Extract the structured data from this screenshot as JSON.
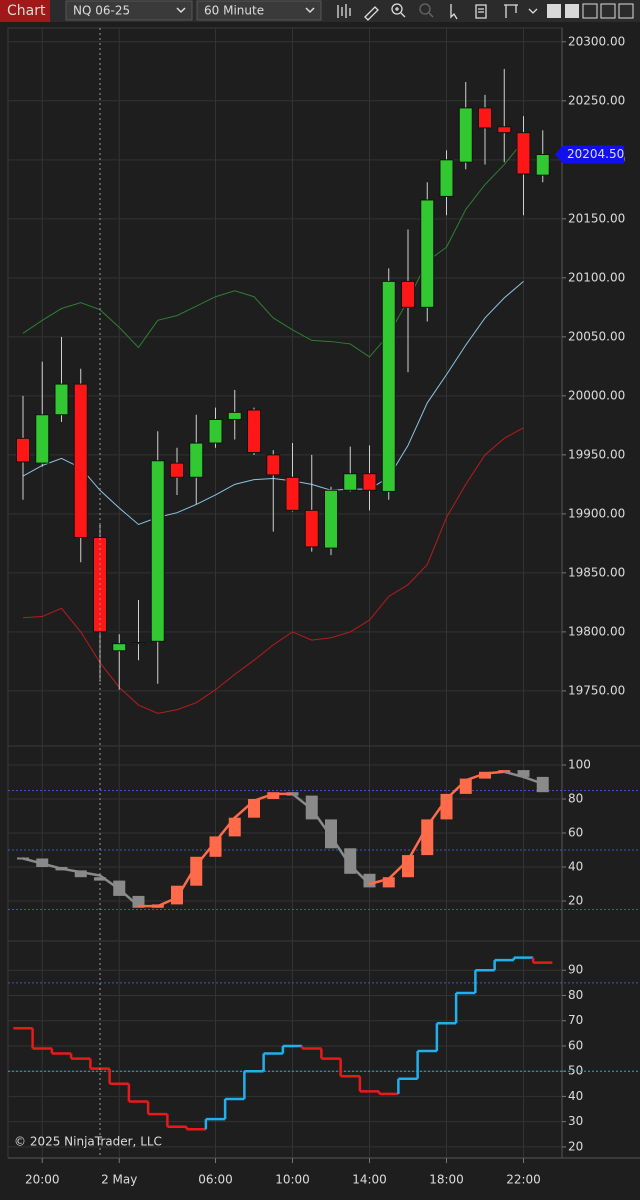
{
  "toolbar": {
    "tab": "Chart",
    "instrument": "NQ 06-25",
    "interval": "60 Minute"
  },
  "copyright": "© 2025 NinjaTrader, LLC",
  "chart_data": [
    {
      "type": "candlestick",
      "categories": [
        null,
        "20:00",
        null,
        null,
        null,
        "2 May",
        null,
        null,
        null,
        null,
        "06:00",
        null,
        null,
        null,
        "10:00",
        null,
        null,
        null,
        "14:00",
        null,
        null,
        null,
        "18:00",
        null,
        null,
        null,
        "22:00",
        null
      ],
      "open": [
        19964,
        19943,
        19984,
        20010,
        19880,
        19784,
        19790,
        19792,
        19943,
        19931,
        19960,
        19980,
        19988,
        19950,
        19931,
        19903,
        19871,
        19920,
        19934,
        19919,
        20097,
        20075,
        20169,
        20198,
        20244,
        20228,
        20223,
        20187
      ],
      "high": [
        20000,
        20029,
        20050,
        20023,
        19891,
        19798,
        19827,
        19970,
        19956,
        19984,
        19990,
        20005,
        19990,
        19954,
        19960,
        19950,
        19923,
        19957,
        19958,
        20108,
        20141,
        20181,
        20208,
        20266,
        20255,
        20277,
        20237,
        20225
      ],
      "low": [
        19912,
        19940,
        19978,
        19859,
        19758,
        19751,
        19776,
        19756,
        19916,
        19908,
        19956,
        19963,
        19950,
        19885,
        19902,
        19868,
        19865,
        19919,
        19903,
        19912,
        20020,
        20063,
        20153,
        20192,
        20196,
        20198,
        20153,
        20181
      ],
      "close": [
        19944,
        19984,
        20010,
        19880,
        19800,
        19790,
        19791,
        19945,
        19931,
        19960,
        19980,
        19986,
        19952,
        19933,
        19903,
        19872,
        19920,
        19934,
        19920,
        20097,
        20075,
        20166,
        20200,
        20244,
        20227,
        20223,
        20188,
        20204.5
      ],
      "up_color": "#32c832",
      "down_color": "#ff1616",
      "lines": [
        {
          "color": "#2f7d34",
          "values": [
            20053,
            20064,
            20074,
            20079,
            20073,
            20058,
            20041,
            20064,
            20068,
            20076,
            20084,
            20089,
            20084,
            20066,
            20056,
            20047,
            20046,
            20044,
            20033,
            20052,
            20081,
            20114,
            20126,
            20158,
            20179,
            20196,
            20216,
            null
          ]
        },
        {
          "color": "#8cc4e4",
          "values": [
            19932,
            19941,
            19947,
            19939,
            19920,
            19905,
            19891,
            19897,
            19901,
            19908,
            19916,
            19925,
            19929,
            19930,
            19928,
            19925,
            19920,
            19921,
            19921,
            19931,
            19958,
            19994,
            20018,
            20043,
            20066,
            20083,
            20097,
            null
          ]
        },
        {
          "color": "#b51d1d",
          "values": [
            19812,
            19813,
            19820,
            19800,
            19774,
            19753,
            19738,
            19731,
            19734,
            19740,
            19751,
            19764,
            19776,
            19789,
            19800,
            19793,
            19795,
            19800,
            19810,
            19830,
            19840,
            19857,
            19897,
            19925,
            19950,
            19964,
            19973,
            null
          ]
        }
      ],
      "ylim": [
        19705,
        20310
      ],
      "yticks": [
        {
          "value": 19750,
          "label": "19750.00"
        },
        {
          "value": 19800,
          "label": "19800.00"
        },
        {
          "value": 19850,
          "label": "19850.00"
        },
        {
          "value": 19900,
          "label": "19900.00"
        },
        {
          "value": 19950,
          "label": "19950.00"
        },
        {
          "value": 20000,
          "label": "20000.00"
        },
        {
          "value": 20050,
          "label": "20050.00"
        },
        {
          "value": 20100,
          "label": "20100.00"
        },
        {
          "value": 20150,
          "label": "20150.00"
        },
        {
          "value": 20200,
          "label": "20200.00"
        },
        {
          "value": 20250,
          "label": "20250.00"
        },
        {
          "value": 20300,
          "label": "20300.00"
        }
      ],
      "last_price": {
        "value": 20204.5,
        "label": "20204.50",
        "color": "#1010ee"
      },
      "grid": true
    },
    {
      "type": "oscillator",
      "blocks": {
        "up_color": "#ff6b4a",
        "down_color": "#8a8a8a",
        "values": [
          45,
          40,
          38,
          34,
          32,
          23,
          16,
          18,
          29,
          46,
          58,
          69,
          80,
          84,
          82,
          68,
          51,
          36,
          28,
          34,
          47,
          68,
          83,
          92,
          96,
          97,
          93,
          84
        ]
      },
      "line": {
        "up_color": "#ff6b4a",
        "down_color": "#8a8a8a",
        "values": [
          45,
          42,
          39,
          37,
          35,
          27,
          17,
          17,
          22,
          41,
          55,
          69,
          79,
          83,
          83,
          74,
          58,
          41,
          30,
          33,
          44,
          64,
          80,
          91,
          95,
          96,
          93,
          89
        ]
      },
      "levels": [
        85,
        50,
        15
      ],
      "level_color": "#3f55c8",
      "ylim": [
        0,
        110
      ],
      "yticks": [
        20,
        40,
        60,
        80,
        100
      ],
      "grid": true
    },
    {
      "type": "step",
      "up_color": "#1eb0ef",
      "down_color": "#e81a1a",
      "values": [
        67,
        59,
        57,
        55,
        51,
        45,
        38,
        33,
        28,
        27,
        31,
        39,
        50,
        57,
        60,
        59,
        55,
        48,
        42,
        41,
        47,
        58,
        69,
        81,
        90,
        94,
        95,
        93
      ],
      "levels": [
        {
          "value": 85,
          "color": "#3f55c8"
        },
        {
          "value": 50,
          "color": "#2aa9d9"
        }
      ],
      "ylim": [
        16,
        100
      ],
      "yticks": [
        20,
        30,
        40,
        50,
        60,
        70,
        80,
        90
      ],
      "grid": true
    }
  ]
}
